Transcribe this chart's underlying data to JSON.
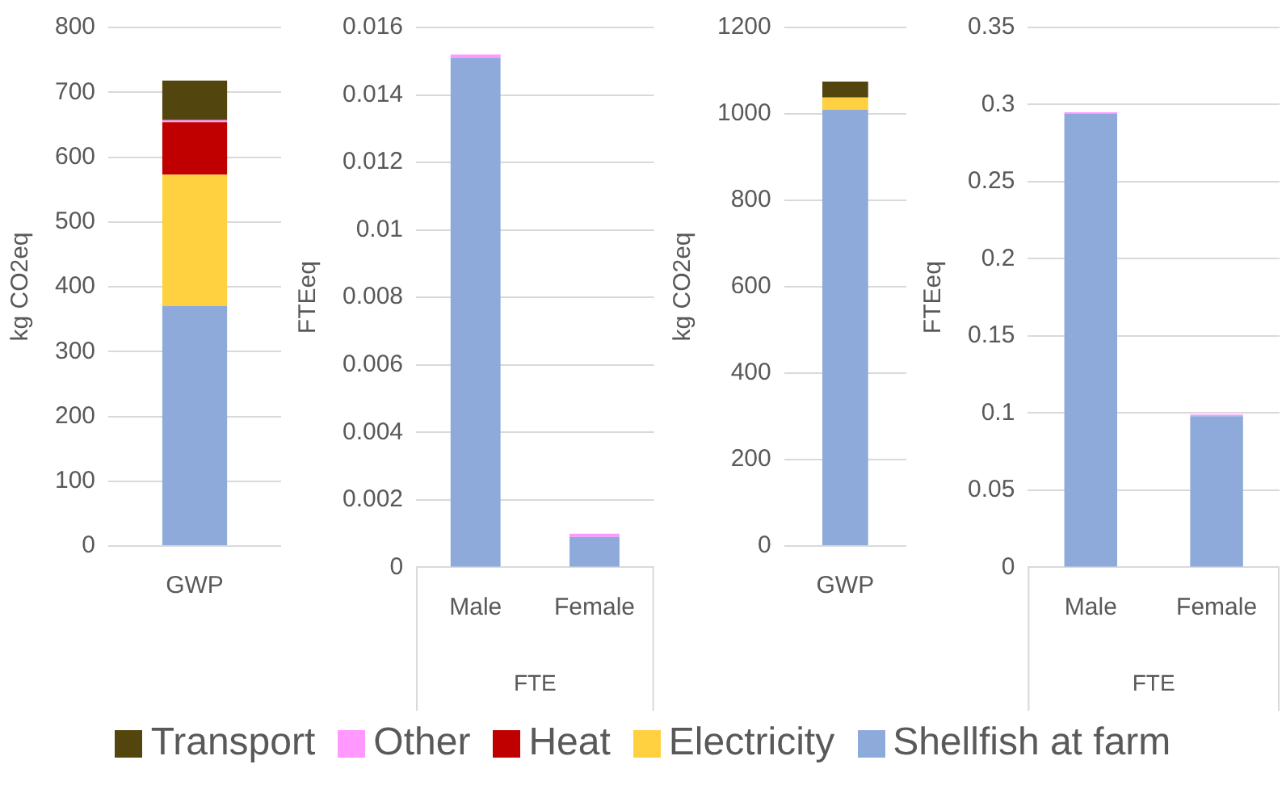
{
  "chart_data": [
    {
      "type": "bar",
      "stacked": true,
      "categories": [
        "GWP"
      ],
      "ylabel": "kg CO2eq",
      "ylim": [
        0,
        800
      ],
      "yticks": [
        0,
        100,
        200,
        300,
        400,
        500,
        600,
        700,
        800
      ],
      "grid": "y",
      "legend": "bottom",
      "series": [
        {
          "name": "Shellfish at farm",
          "color": "#8eaadb",
          "values": [
            370
          ]
        },
        {
          "name": "Electricity",
          "color": "#ffd03f",
          "values": [
            203
          ]
        },
        {
          "name": "Heat",
          "color": "#c00000",
          "values": [
            81
          ]
        },
        {
          "name": "Other",
          "color": "#ff99ff",
          "values": [
            3
          ]
        },
        {
          "name": "Transport",
          "color": "#53450e",
          "values": [
            61
          ]
        }
      ]
    },
    {
      "type": "bar",
      "stacked": true,
      "categories": [
        "Male",
        "Female"
      ],
      "xlabel": "FTE",
      "ylabel": "FTEeq",
      "ylim": [
        0,
        0.016
      ],
      "yticks": [
        0,
        0.002,
        0.004,
        0.006,
        0.008,
        0.01,
        0.012,
        0.014,
        0.016
      ],
      "grid": "y",
      "series": [
        {
          "color": "#8eaadb",
          "values": [
            0.0151,
            0.0009
          ]
        },
        {
          "color": "#ffd03f",
          "values": [
            0,
            0
          ]
        },
        {
          "color": "#c00000",
          "values": [
            0,
            0
          ]
        },
        {
          "color": "#ff99ff",
          "values": [
            0.0001,
            0.0001
          ]
        },
        {
          "color": "#53450e",
          "values": [
            0,
            0
          ]
        }
      ]
    },
    {
      "type": "bar",
      "stacked": true,
      "categories": [
        "GWP"
      ],
      "ylabel": "kg CO2eq",
      "ylim": [
        0,
        1200
      ],
      "yticks": [
        0,
        200,
        400,
        600,
        800,
        1000,
        1200
      ],
      "grid": "y",
      "series": [
        {
          "color": "#8eaadb",
          "values": [
            1010
          ]
        },
        {
          "color": "#ffd03f",
          "values": [
            28
          ]
        },
        {
          "color": "#c00000",
          "values": [
            0
          ]
        },
        {
          "color": "#ff99ff",
          "values": [
            0
          ]
        },
        {
          "color": "#53450e",
          "values": [
            37
          ]
        }
      ]
    },
    {
      "type": "bar",
      "stacked": true,
      "categories": [
        "Male",
        "Female"
      ],
      "xlabel": "FTE",
      "ylabel": "FTEeq",
      "ylim": [
        0,
        0.35
      ],
      "yticks": [
        0,
        0.05,
        0.1,
        0.15,
        0.2,
        0.25,
        0.3,
        0.35
      ],
      "grid": "y",
      "series": [
        {
          "color": "#8eaadb",
          "values": [
            0.294,
            0.098
          ]
        },
        {
          "color": "#ffd03f",
          "values": [
            0,
            0
          ]
        },
        {
          "color": "#c00000",
          "values": [
            0,
            0
          ]
        },
        {
          "color": "#ff99ff",
          "values": [
            0.001,
            0.001
          ]
        },
        {
          "color": "#53450e",
          "values": [
            0,
            0
          ]
        }
      ]
    }
  ]
}
